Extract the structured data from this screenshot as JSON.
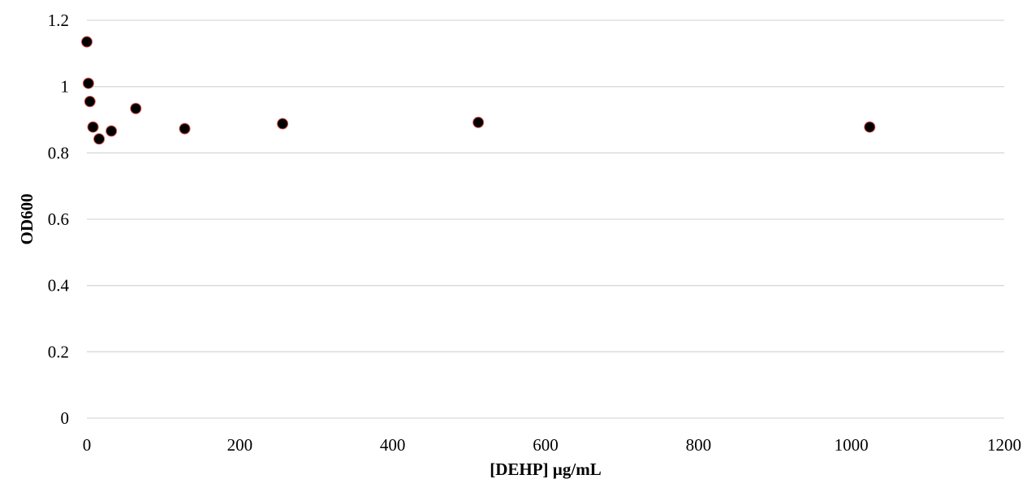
{
  "chart_data": {
    "type": "scatter",
    "title": "",
    "xlabel": "[DEHP] µg/mL",
    "ylabel": "OD600",
    "xlim": [
      0,
      1200
    ],
    "ylim": [
      0,
      1.2
    ],
    "x_ticks": [
      "0",
      "200",
      "400",
      "600",
      "800",
      "1000",
      "1200"
    ],
    "y_ticks": [
      "0",
      "0.2",
      "0.4",
      "0.6",
      "0.8",
      "1",
      "1.2"
    ],
    "grid": "horizontal",
    "legend": "none",
    "series": [
      {
        "x": [
          0,
          2,
          4,
          8,
          16,
          32,
          64,
          128,
          256,
          512,
          1024
        ],
        "y": [
          1.135,
          1.01,
          0.955,
          0.878,
          0.842,
          0.866,
          0.934,
          0.873,
          0.888,
          0.892,
          0.878
        ]
      }
    ],
    "colors": {
      "marker": "#000000",
      "marker_outline": "#d9534f",
      "grid": "#d9d9d9"
    }
  }
}
